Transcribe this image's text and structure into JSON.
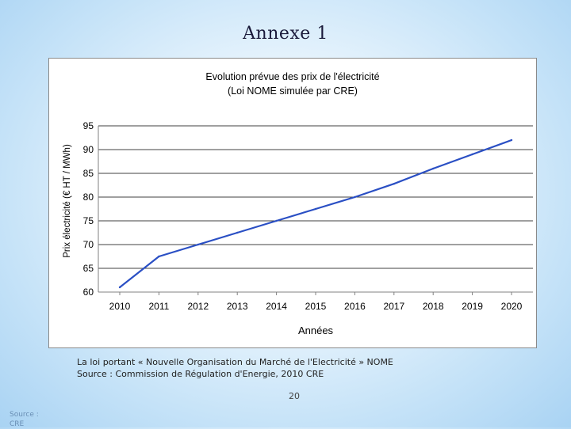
{
  "slide": {
    "title": "Annexe 1",
    "caption_line1": "La loi portant « Nouvelle Organisation du Marché de l'Electricité » NOME",
    "caption_line2": "Source : Commission de Régulation d'Energie, 2010 CRE",
    "page_number": "20",
    "source_tag": "Source : CRE"
  },
  "chart_data": {
    "type": "line",
    "title": "Evolution prévue des prix de l'électricité",
    "subtitle": "(Loi NOME simulée par CRE)",
    "xlabel": "Années",
    "ylabel": "Prix électricité (€ HT / MWh)",
    "categories": [
      "2010",
      "2011",
      "2012",
      "2013",
      "2014",
      "2015",
      "2016",
      "2017",
      "2018",
      "2019",
      "2020"
    ],
    "series": [
      {
        "values": [
          61,
          67.5,
          70,
          72.5,
          75,
          77.5,
          80,
          82.8,
          86,
          89,
          92
        ],
        "color": "#2a4fc4"
      }
    ],
    "ylim": [
      60,
      95
    ],
    "yticks": [
      60,
      65,
      70,
      75,
      80,
      85,
      90,
      95
    ],
    "grid": true,
    "legend": "none"
  }
}
